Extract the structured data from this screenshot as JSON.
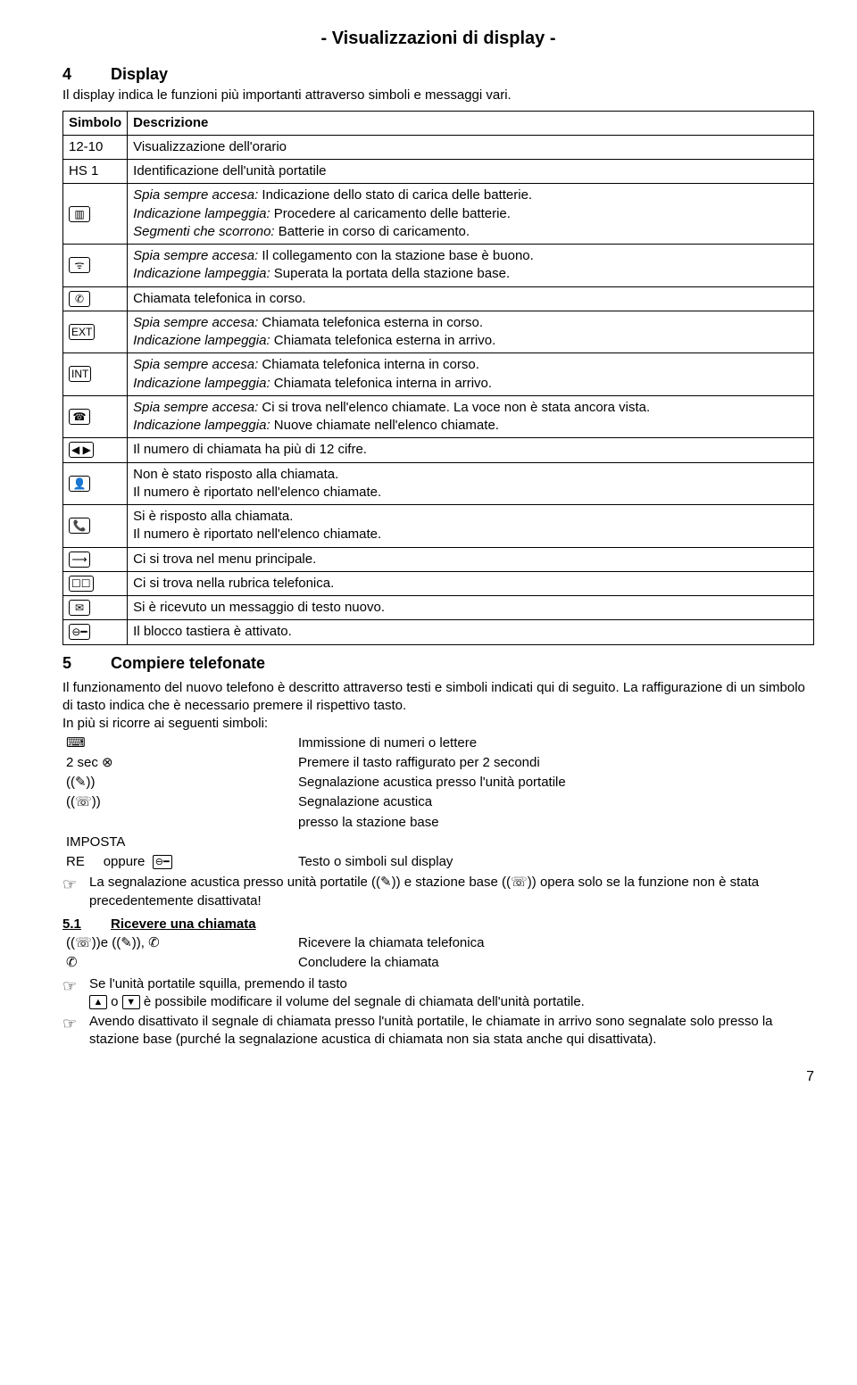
{
  "title": "- Visualizzazioni di display -",
  "sec4": {
    "num": "4",
    "title": "Display"
  },
  "intro4": "Il display indica le funzioni più importanti attraverso simboli e messaggi vari.",
  "th": {
    "sym": "Simbolo",
    "desc": "Descrizione"
  },
  "rows": [
    {
      "sym_text": "12-10",
      "sym_boxed": false,
      "lines": [
        {
          "t": "Visualizzazione dell'orario"
        }
      ]
    },
    {
      "sym_text": "HS 1",
      "sym_boxed": false,
      "lines": [
        {
          "t": "Identificazione dell'unità portatile"
        }
      ]
    },
    {
      "sym_text": "▥",
      "sym_boxed": true,
      "lines": [
        {
          "i": "Spia sempre accesa:",
          "t": " Indicazione dello stato di carica delle batterie."
        },
        {
          "i": "Indicazione lampeggia:",
          "t": " Procedere al caricamento delle batterie."
        },
        {
          "i": "Segmenti che scorrono:",
          "t": " Batterie in corso di caricamento."
        }
      ]
    },
    {
      "sym_text": "ᯤ",
      "sym_boxed": true,
      "lines": [
        {
          "i": "Spia sempre accesa:",
          "t": " Il collegamento con la stazione base è buono."
        },
        {
          "i": "Indicazione lampeggia:",
          "t": " Superata la portata della stazione base."
        }
      ]
    },
    {
      "sym_text": "✆",
      "sym_boxed": true,
      "lines": [
        {
          "t": "Chiamata telefonica in corso."
        }
      ]
    },
    {
      "sym_text": "EXT",
      "sym_boxed": true,
      "lines": [
        {
          "i": "Spia sempre accesa:",
          "t": " Chiamata telefonica esterna in corso."
        },
        {
          "i": "Indicazione lampeggia:",
          "t": " Chiamata telefonica esterna in arrivo."
        }
      ]
    },
    {
      "sym_text": "INT",
      "sym_boxed": true,
      "lines": [
        {
          "i": "Spia sempre accesa:",
          "t": " Chiamata telefonica interna in corso."
        },
        {
          "i": "Indicazione lampeggia:",
          "t": " Chiamata telefonica interna in arrivo."
        }
      ]
    },
    {
      "sym_text": "☎",
      "sym_boxed": true,
      "lines": [
        {
          "i": "Spia sempre accesa:",
          "t": " Ci si trova nell'elenco chiamate. La voce non è stata ancora vista."
        },
        {
          "i": "Indicazione lampeggia:",
          "t": " Nuove chiamate nell'elenco chiamate."
        }
      ]
    },
    {
      "sym_text": "◀ ▶",
      "sym_boxed": true,
      "lines": [
        {
          "t": "Il numero di chiamata ha più di 12 cifre."
        }
      ]
    },
    {
      "sym_text": "👤",
      "sym_boxed": true,
      "lines": [
        {
          "t": "Non è stato risposto alla chiamata."
        },
        {
          "t": "Il numero è riportato nell'elenco chiamate."
        }
      ]
    },
    {
      "sym_text": "📞",
      "sym_boxed": true,
      "lines": [
        {
          "t": "Si è risposto alla chiamata."
        },
        {
          "t": "Il numero è riportato nell'elenco chiamate."
        }
      ]
    },
    {
      "sym_text": "⟶",
      "sym_boxed": true,
      "lines": [
        {
          "t": "Ci si trova nel menu principale."
        }
      ]
    },
    {
      "sym_text": "☐☐",
      "sym_boxed": true,
      "lines": [
        {
          "t": "Ci si trova nella rubrica telefonica."
        }
      ]
    },
    {
      "sym_text": "✉",
      "sym_boxed": true,
      "lines": [
        {
          "t": "Si è ricevuto un messaggio di testo nuovo."
        }
      ]
    },
    {
      "sym_text": "⊖━",
      "sym_boxed": true,
      "lines": [
        {
          "t": "Il blocco tastiera è attivato."
        }
      ]
    }
  ],
  "sec5": {
    "num": "5",
    "title": "Compiere telefonate"
  },
  "intro5a": "Il funzionamento del nuovo telefono è descritto attraverso testi e simboli indicati qui di seguito. La raffigurazione di un simbolo di tasto indica che è necessario premere il rispettivo tasto.",
  "intro5b": "In più si ricorre ai seguenti simboli:",
  "leg": [
    {
      "l": "⌨",
      "r": "Immissione di numeri o lettere"
    },
    {
      "l": "2 sec ⊗",
      "r": "Premere il tasto raffigurato per 2 secondi"
    },
    {
      "l": "((✎))",
      "r": "Segnalazione acustica presso l'unità portatile"
    },
    {
      "l": "((☏))",
      "r": "Segnalazione acustica"
    },
    {
      "l": "",
      "r": "presso la stazione base"
    }
  ],
  "legLast": {
    "l1": "IMPOSTA",
    "l2a": "RE",
    "l2b": "oppure",
    "key": "⊖━",
    "r": "Testo o simboli sul display"
  },
  "note1a": "La segnalazione acustica presso unità portatile ",
  "note1b": " e stazione base ",
  "note1c": " opera solo se la funzione non è stata precedentemente disattivata!",
  "icon_hand": "((✎))",
  "icon_base": "((☏))",
  "sec51": {
    "num": "5.1",
    "title": "Ricevere una chiamata"
  },
  "recv": [
    {
      "l": "((☏))e ((✎)), ✆",
      "r": "Ricevere la chiamata telefonica"
    },
    {
      "l": "✆",
      "r": "Concludere la chiamata"
    }
  ],
  "note2a": "Se l'unità portatile squilla, premendo il tasto",
  "note2b1": " o ",
  "note2b2": " è possibile modificare il volume del segnale di chiamata dell'unità portatile.",
  "key_up": "▲",
  "key_down": "▼",
  "note3": "Avendo disattivato il segnale di chiamata presso l'unità portatile, le chiamate in arrivo sono segnalate solo presso la stazione base (purché la segnalazione acustica di chiamata non sia stata anche qui disattivata).",
  "pagenum": "7"
}
